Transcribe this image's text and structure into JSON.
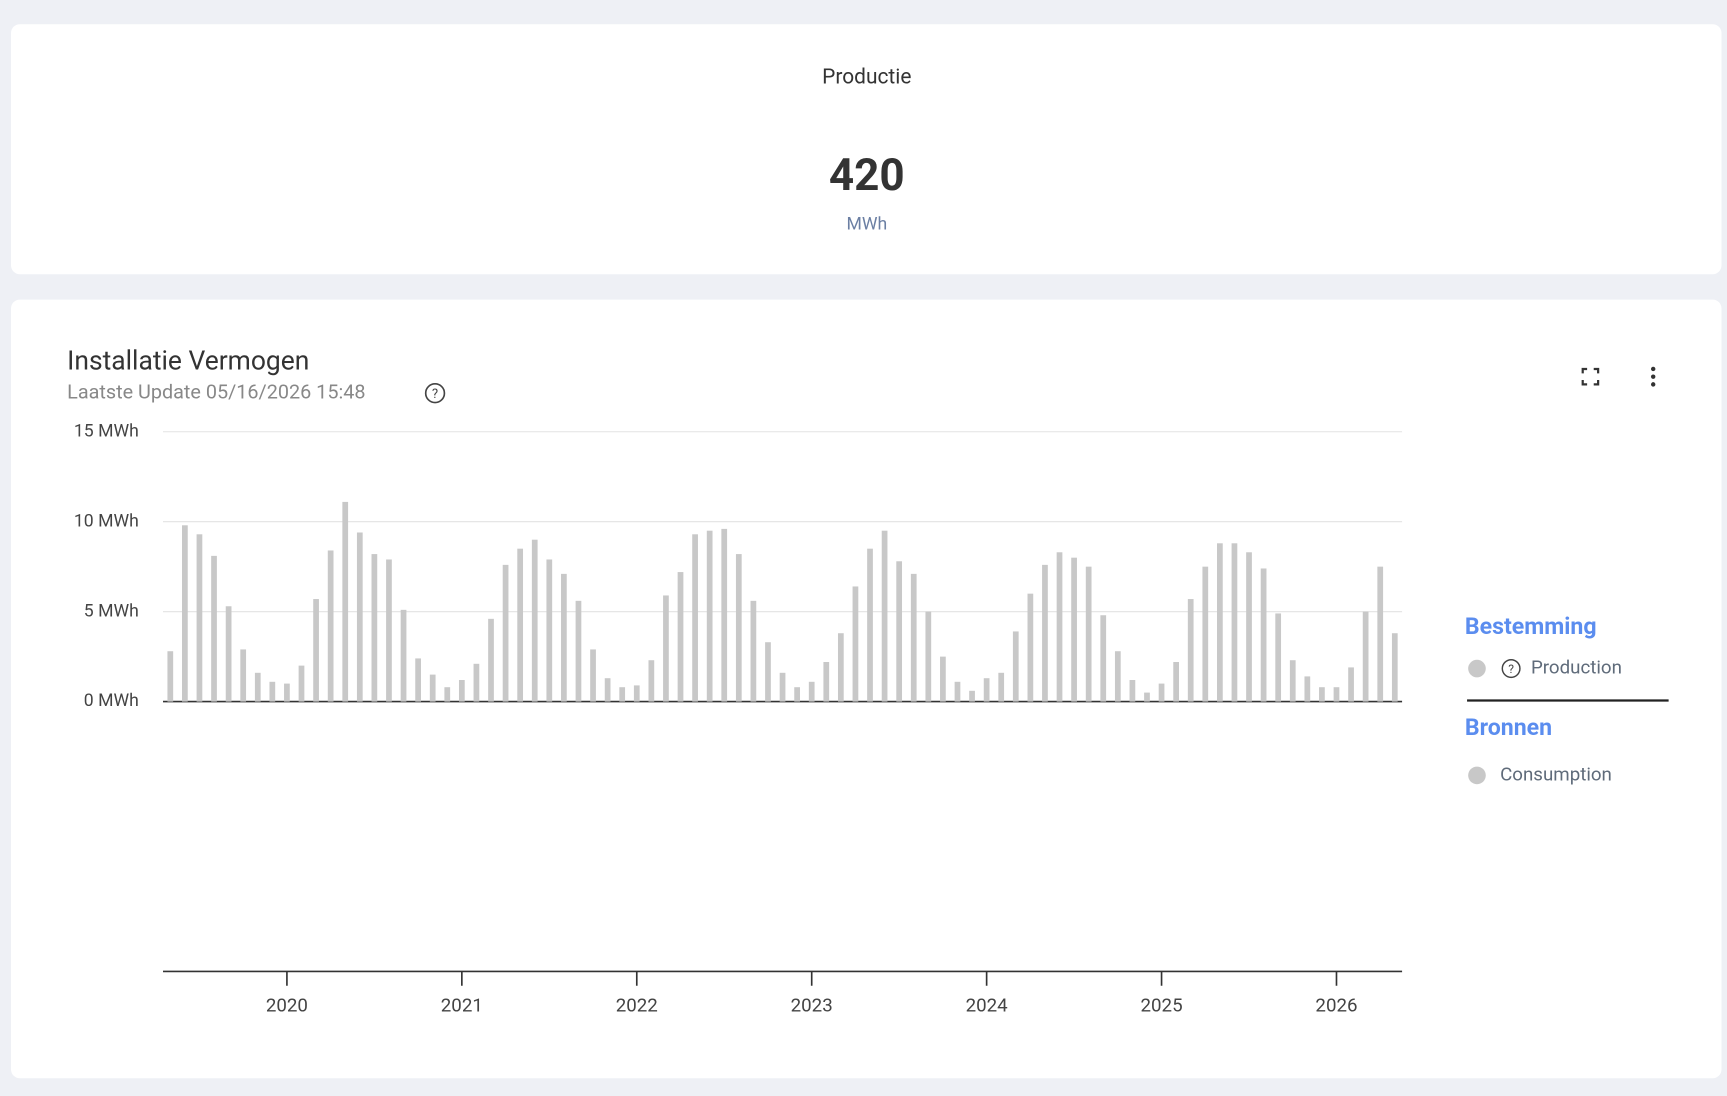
{
  "kpi": {
    "title": "Productie",
    "value": "420",
    "unit": "MWh"
  },
  "chart_data": {
    "type": "bar",
    "title": "Installatie Vermogen",
    "subtitle": "Laatste Update 05/16/2026 15:48",
    "categories": [
      null,
      null,
      null,
      null,
      null,
      null,
      null,
      null,
      "2020",
      null,
      null,
      null,
      null,
      null,
      null,
      null,
      null,
      null,
      null,
      null,
      "2021",
      null,
      null,
      null,
      null,
      null,
      null,
      null,
      null,
      null,
      null,
      null,
      "2022",
      null,
      null,
      null,
      null,
      null,
      null,
      null,
      null,
      null,
      null,
      null,
      "2023",
      null,
      null,
      null,
      null,
      null,
      null,
      null,
      null,
      null,
      null,
      null,
      "2024",
      null,
      null,
      null,
      null,
      null,
      null,
      null,
      null,
      null,
      null,
      null,
      "2025",
      null,
      null,
      null,
      null,
      null,
      null,
      null,
      null,
      null,
      null,
      null,
      "2026",
      null,
      null,
      null,
      null
    ],
    "series": [
      {
        "name": "Production",
        "color": "#c8c8c8",
        "values": [
          2.8,
          9.8,
          9.3,
          8.1,
          5.3,
          2.9,
          1.6,
          1.1,
          1.0,
          2.0,
          5.7,
          8.4,
          11.1,
          9.4,
          8.2,
          7.9,
          5.1,
          2.4,
          1.5,
          0.8,
          1.2,
          2.1,
          4.6,
          7.6,
          8.5,
          9.0,
          7.9,
          7.1,
          5.6,
          2.9,
          1.3,
          0.8,
          0.9,
          2.3,
          5.9,
          7.2,
          9.3,
          9.5,
          9.6,
          8.2,
          5.6,
          3.3,
          1.6,
          0.8,
          1.1,
          2.2,
          3.8,
          6.4,
          8.5,
          9.5,
          7.8,
          7.1,
          5.0,
          2.5,
          1.1,
          0.6,
          1.3,
          1.6,
          3.9,
          6.0,
          7.6,
          8.3,
          8.0,
          7.5,
          4.8,
          2.8,
          1.2,
          0.5,
          1.0,
          2.2,
          5.7,
          7.5,
          8.8,
          8.8,
          8.3,
          7.4,
          4.9,
          2.3,
          1.4,
          0.8,
          0.8,
          1.9,
          5.0,
          7.5,
          3.8
        ]
      }
    ],
    "legend": [
      {
        "title": "Bestemming",
        "items": [
          "Production"
        ]
      },
      {
        "title": "Bronnen",
        "items": [
          "Consumption"
        ]
      }
    ],
    "ylim": [
      -15,
      15
    ],
    "yticks": [
      {
        "value": 0,
        "label": "0 MWh"
      },
      {
        "value": 5,
        "label": "5 MWh"
      },
      {
        "value": 10,
        "label": "10 MWh"
      },
      {
        "value": 15,
        "label": "15 MWh"
      }
    ],
    "grid": true
  }
}
